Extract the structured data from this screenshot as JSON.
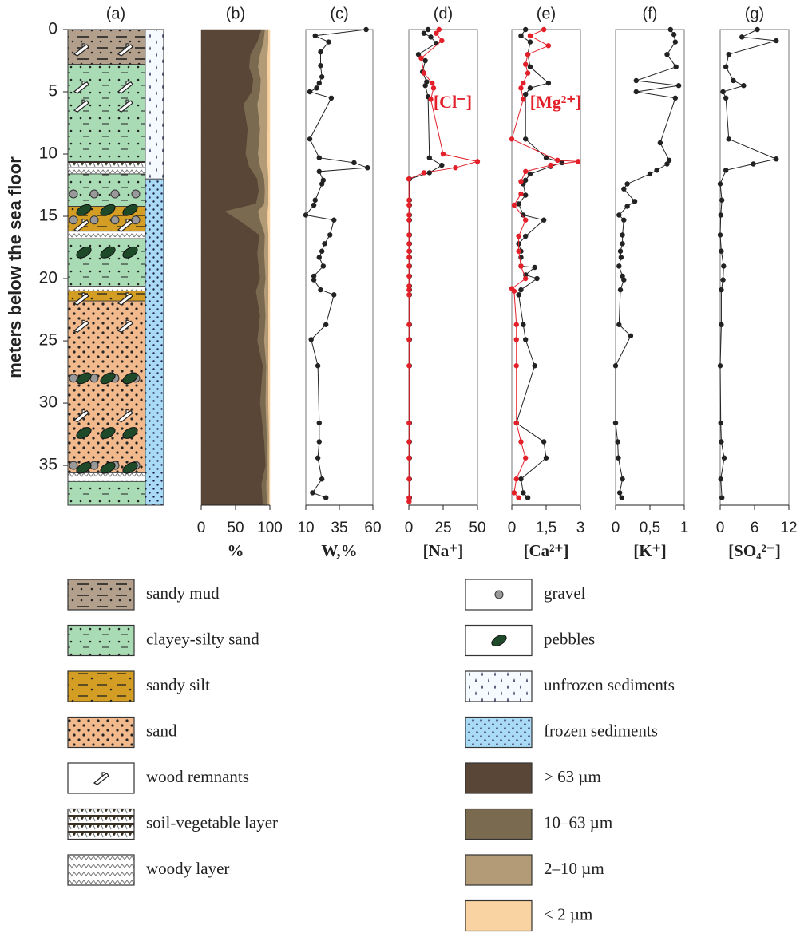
{
  "chart_data": [
    {
      "type": "column",
      "panel": "(a)",
      "ylabel": "meters below the sea floor",
      "ylim": [
        0,
        38.2
      ],
      "yticks": [
        0,
        5,
        10,
        15,
        20,
        25,
        30,
        35
      ],
      "layers": [
        {
          "top": 0,
          "bottom": 2.8,
          "unit": "sandy mud"
        },
        {
          "top": 2.8,
          "bottom": 10.6,
          "unit": "clayey-silty sand"
        },
        {
          "top": 10.6,
          "bottom": 11.1,
          "unit": "soil-vegetable layer"
        },
        {
          "top": 11.1,
          "bottom": 11.6,
          "unit": "woody layer"
        },
        {
          "top": 11.6,
          "bottom": 14.2,
          "unit": "clayey-silty sand"
        },
        {
          "top": 14.2,
          "bottom": 16.2,
          "unit": "sandy silt"
        },
        {
          "top": 16.2,
          "bottom": 16.8,
          "unit": "woody layer"
        },
        {
          "top": 16.8,
          "bottom": 20.6,
          "unit": "clayey-silty sand"
        },
        {
          "top": 20.6,
          "bottom": 21.0,
          "unit": "woody layer"
        },
        {
          "top": 21.0,
          "bottom": 21.8,
          "unit": "sandy silt"
        },
        {
          "top": 21.8,
          "bottom": 35.6,
          "unit": "sand"
        },
        {
          "top": 35.6,
          "bottom": 36.3,
          "unit": "woody layer"
        },
        {
          "top": 36.3,
          "bottom": 38.2,
          "unit": "clayey-silty sand"
        }
      ],
      "state": [
        {
          "top": 0,
          "bottom": 12.0,
          "unit": "unfrozen sediments"
        },
        {
          "top": 12.0,
          "bottom": 38.2,
          "unit": "frozen sediments"
        }
      ],
      "gravel": [
        13.2,
        15.3,
        28.0,
        35.0
      ],
      "pebbles": [
        14.5,
        17.9,
        28.0,
        32.4,
        35.2
      ],
      "wood": [
        1.6,
        4.6,
        6.1,
        15.7,
        21.6,
        23.8,
        31.0
      ]
    },
    {
      "type": "stacked-area",
      "panel": "(b)",
      "xlabel": "%",
      "xlim": [
        0,
        100
      ],
      "xticks": [
        0,
        50,
        100
      ],
      "depth": [
        0,
        1,
        2,
        3,
        4,
        5,
        6,
        8,
        10,
        11,
        12,
        13,
        14,
        14.6,
        15.5,
        16.5,
        18,
        20,
        21,
        23,
        25,
        27,
        30,
        33,
        35,
        36.5,
        38.2
      ],
      "series": [
        {
          "name": "> 63 µm",
          "color": "#5a4637",
          "values": [
            88,
            82,
            72,
            70,
            76,
            74,
            62,
            68,
            65,
            70,
            82,
            84,
            80,
            35,
            60,
            85,
            82,
            86,
            80,
            86,
            82,
            90,
            86,
            92,
            94,
            88,
            90
          ]
        },
        {
          "name": "10–63 µm",
          "color": "#7a6a50",
          "values": [
            5,
            9,
            14,
            13,
            11,
            12,
            20,
            18,
            18,
            16,
            10,
            9,
            12,
            48,
            27,
            8,
            10,
            8,
            12,
            8,
            10,
            5,
            8,
            4,
            3,
            7,
            6
          ]
        },
        {
          "name": "2–10 µm",
          "color": "#b39b77",
          "values": [
            5,
            7,
            11,
            13,
            10,
            11,
            15,
            11,
            13,
            11,
            6,
            5,
            6,
            14,
            10,
            5,
            6,
            4,
            6,
            4,
            6,
            3,
            4,
            3,
            2,
            4,
            3
          ]
        },
        {
          "name": "< 2 µm",
          "color": "#f9d3a2",
          "values": [
            2,
            2,
            3,
            4,
            3,
            3,
            3,
            3,
            4,
            3,
            2,
            2,
            2,
            3,
            3,
            2,
            2,
            2,
            2,
            2,
            2,
            2,
            2,
            1,
            1,
            1,
            1
          ]
        }
      ]
    },
    {
      "type": "profile",
      "panel": "(c)",
      "xlabel": "W,%",
      "xlim": [
        10,
        60
      ],
      "xticks": [
        10,
        35,
        60
      ],
      "series": [
        {
          "color": "#222222",
          "depth": [
            0.0,
            0.5,
            1.0,
            1.8,
            2.9,
            3.8,
            4.3,
            4.7,
            5.0,
            5.5,
            8.8,
            10.3,
            10.7,
            11.1,
            11.4,
            12.1,
            12.4,
            13.7,
            14.1,
            14.9,
            15.3,
            16.5,
            17.2,
            17.8,
            18.3,
            19.0,
            19.8,
            20.1,
            20.9,
            21.3,
            23.7,
            24.9,
            27.0,
            31.6,
            33.1,
            34.4,
            36.1,
            37.2,
            37.6
          ],
          "values": [
            55,
            17,
            27,
            21,
            21,
            22,
            20,
            18,
            13,
            29,
            13,
            20,
            46,
            56,
            20,
            23,
            22,
            17,
            16,
            10,
            31,
            28,
            24,
            22,
            20,
            23,
            16,
            16,
            21,
            31,
            25,
            14,
            19,
            20,
            20,
            19,
            22,
            15,
            25
          ]
        }
      ]
    },
    {
      "type": "profile",
      "panel": "(d)",
      "xlabel": "[Na⁺]",
      "xlim": [
        0,
        50
      ],
      "xticks": [
        0,
        25,
        50
      ],
      "series": [
        {
          "color": "#222222",
          "depth": [
            0.0,
            0.3,
            0.6,
            1.1,
            2.0,
            2.5,
            3.4,
            4.2,
            4.5,
            5.4,
            10.3,
            10.9,
            11.5,
            12.0,
            13.7,
            14.1,
            14.9,
            15.3,
            16.5,
            17.2,
            17.8,
            18.3,
            19.0,
            19.8,
            20.6,
            20.9,
            21.3,
            23.7,
            24.9,
            27.0,
            31.6,
            33.1,
            34.4,
            36.1,
            37.6
          ],
          "values": [
            14,
            11,
            16,
            20,
            7,
            12,
            10,
            13,
            12,
            14,
            15,
            24,
            15,
            0.5,
            0.5,
            0.5,
            0.5,
            0.5,
            0.5,
            0.5,
            0.5,
            0.5,
            0.5,
            0.5,
            0.5,
            0.5,
            0.5,
            0.5,
            0.5,
            0.5,
            0.5,
            0.5,
            0.5,
            0.5,
            0.5
          ]
        },
        {
          "name": "[Cl⁻]",
          "color": "#e3202a",
          "depth": [
            0.0,
            0.3,
            0.9,
            2.3,
            3.5,
            4.3,
            4.7,
            5.6,
            10.0,
            10.6,
            11.1,
            11.5,
            12.0,
            13.7,
            14.1,
            14.9,
            15.3,
            16.5,
            17.2,
            17.8,
            18.3,
            19.0,
            19.8,
            20.6,
            20.9,
            21.3,
            23.7,
            24.9,
            27.0,
            31.6,
            33.1,
            34.4,
            36.1,
            37.6,
            37.9
          ],
          "values": [
            22,
            20,
            24,
            9,
            11,
            17,
            18,
            16,
            25,
            50,
            34,
            11,
            0,
            0.2,
            0.2,
            0.2,
            0.2,
            0.2,
            0.2,
            0.2,
            0.2,
            0.2,
            0.2,
            0.2,
            0.2,
            0.2,
            0.2,
            0.2,
            0.2,
            0.2,
            0.2,
            0.2,
            0.2,
            0.2,
            0.2
          ]
        }
      ]
    },
    {
      "type": "profile",
      "panel": "(e)",
      "xlabel": "[Ca²⁺]",
      "xlim": [
        0,
        3
      ],
      "xticks": [
        0,
        {
          "value": 1.5,
          "label": "1,5"
        },
        3
      ],
      "series": [
        {
          "color": "#222222",
          "depth": [
            0,
            0.5,
            1.0,
            2,
            3,
            4.3,
            4.7,
            5.2,
            8.8,
            10.3,
            10.7,
            11.0,
            11.6,
            12.1,
            12.4,
            13.3,
            14.0,
            14.9,
            15.3,
            16.6,
            17.2,
            17.8,
            18.3,
            19.0,
            19.1,
            19.7,
            20.0,
            20.9,
            21.3,
            23.7,
            24.9,
            27.0,
            31.6,
            33.1,
            34.4,
            36.1,
            37.2,
            37.6
          ],
          "values": [
            0.6,
            0.4,
            0.8,
            0.7,
            0.8,
            1.6,
            0.8,
            0.6,
            0.6,
            1.5,
            2.2,
            1.7,
            0.8,
            0.6,
            0.5,
            0.6,
            0.3,
            0.5,
            1.4,
            0.6,
            0.3,
            0.4,
            0.4,
            0.4,
            1.0,
            0.6,
            1.1,
            0.4,
            0.3,
            0.5,
            0.6,
            1.0,
            0.2,
            1.4,
            1.5,
            0.4,
            0.5,
            0.7
          ]
        },
        {
          "name": "[Mg²⁺]",
          "color": "#e3202a",
          "depth": [
            0,
            0.5,
            1.3,
            2.0,
            2.8,
            3.5,
            4.3,
            4.7,
            5.6,
            8.8,
            10.5,
            10.6,
            10.9,
            11.4,
            12.2,
            13.2,
            14.1,
            15.3,
            16.6,
            17.8,
            19.0,
            20.0,
            20.8,
            21.0,
            23.7,
            24.9,
            27.0,
            31.6,
            33.1,
            34.4,
            36.1,
            37.2,
            37.6
          ],
          "values": [
            1.4,
            0.8,
            1.6,
            0.7,
            0.6,
            0.7,
            0.5,
            0.4,
            0.5,
            0.0,
            2.0,
            2.9,
            1.7,
            0.6,
            0.4,
            0.4,
            0.1,
            0.6,
            0.3,
            0.3,
            0.4,
            0.6,
            0.0,
            0.1,
            0.2,
            0.2,
            0.2,
            0.2,
            0.4,
            0.6,
            0.2,
            0.1,
            0.3
          ]
        }
      ]
    },
    {
      "type": "profile",
      "panel": "(f)",
      "xlabel": "[K⁺]",
      "xlim": [
        0,
        1
      ],
      "xticks": [
        0,
        {
          "value": 0.5,
          "label": "0,5"
        },
        1
      ],
      "series": [
        {
          "color": "#222222",
          "depth": [
            0,
            0.4,
            1.0,
            2.0,
            3.0,
            4.1,
            4.5,
            5.0,
            5.5,
            9.1,
            10.5,
            10.8,
            11.3,
            11.6,
            12.4,
            12.8,
            13.8,
            14.2,
            14.9,
            15.3,
            16.5,
            17.2,
            17.8,
            18.3,
            19.0,
            19.8,
            20.1,
            20.9,
            23.7,
            24.6,
            27.0,
            31.6,
            33.1,
            34.4,
            36.1,
            37.2,
            37.6
          ],
          "values": [
            0.8,
            0.85,
            0.87,
            0.75,
            0.88,
            0.3,
            0.92,
            0.3,
            0.87,
            0.65,
            0.78,
            0.75,
            0.6,
            0.5,
            0.17,
            0.12,
            0.28,
            0.17,
            0.05,
            0.12,
            0.1,
            0.1,
            0.07,
            0.08,
            0.05,
            0.1,
            0.12,
            0.07,
            0.05,
            0.22,
            0.0,
            0.0,
            0.03,
            0.04,
            0.1,
            0.06,
            0.09
          ]
        }
      ]
    },
    {
      "type": "profile",
      "panel": "(g)",
      "xlabel": "[SO₄²⁻]",
      "xlim": [
        0,
        12
      ],
      "xticks": [
        0,
        6,
        12
      ],
      "series": [
        {
          "color": "#222222",
          "depth": [
            0,
            0.6,
            0.9,
            2.0,
            3.0,
            4.1,
            4.5,
            5.0,
            5.5,
            8.8,
            10.4,
            10.8,
            11.3,
            12.4,
            13.7,
            14.9,
            16.5,
            17.8,
            19.0,
            20.1,
            20.9,
            23.7,
            27.0,
            31.6,
            33.1,
            34.4,
            36.1,
            37.6
          ],
          "values": [
            6.5,
            3.8,
            9.8,
            1.5,
            1.0,
            2.3,
            4.1,
            0.5,
            1.0,
            1.5,
            9.8,
            5.8,
            1.0,
            0.0,
            0.3,
            0.1,
            0.0,
            0.2,
            0.6,
            0.5,
            0.2,
            0.2,
            0.0,
            0.1,
            0.2,
            0.7,
            0.1,
            0.3
          ]
        }
      ]
    }
  ],
  "legend": [
    "sandy mud",
    "clayey-silty sand",
    "sandy silt",
    "sand",
    "wood remnants",
    "soil-vegetable layer",
    "woody layer",
    "gravel",
    "pebbles",
    "unfrozen sediments",
    "frozen sediments"
  ]
}
